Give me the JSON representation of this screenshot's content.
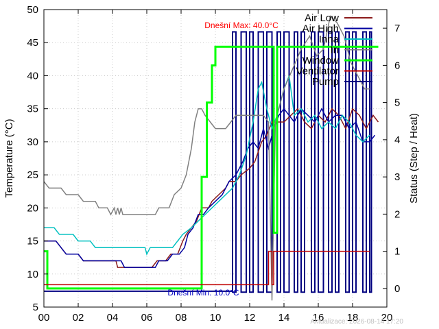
{
  "chart_data": {
    "type": "line",
    "title": "",
    "xlabel": "",
    "ylabel": "Temperature (°C)",
    "y2label": "Status (Step / Heat)",
    "xlim": [
      0,
      20
    ],
    "ylim": [
      5,
      50
    ],
    "y2lim": [
      -0.5,
      7.5
    ],
    "grid": true,
    "legend_position": "top-right",
    "x_ticks": [
      "00",
      "02",
      "04",
      "06",
      "08",
      "10",
      "12",
      "14",
      "16",
      "18",
      "20"
    ],
    "y_ticks": [
      "5",
      "10",
      "15",
      "20",
      "25",
      "30",
      "35",
      "40",
      "45",
      "50"
    ],
    "y2_ticks": [
      "0",
      "1",
      "2",
      "3",
      "4",
      "5",
      "6",
      "7"
    ],
    "annotations": {
      "max": "Dnešní Max: 40.0°C",
      "min": "Dnešní Min: 10.0°C",
      "footer": "Aktualizace: 2026-08-14 17:20"
    },
    "series": [
      {
        "name": "Air Low",
        "axis": "y",
        "color": "#8b1a1a",
        "points": [
          [
            0,
            15
          ],
          [
            0.7,
            15
          ],
          [
            1,
            14
          ],
          [
            1.3,
            13
          ],
          [
            2,
            13
          ],
          [
            2.3,
            12
          ],
          [
            4.2,
            12
          ],
          [
            4.3,
            11
          ],
          [
            5,
            11
          ],
          [
            6,
            11
          ],
          [
            6.3,
            11
          ],
          [
            6.6,
            12
          ],
          [
            7.1,
            12
          ],
          [
            7.4,
            13
          ],
          [
            7.8,
            13
          ],
          [
            8.1,
            15
          ],
          [
            8.3,
            16
          ],
          [
            8.6,
            17
          ],
          [
            8.9,
            18
          ],
          [
            9.2,
            20
          ],
          [
            9.6,
            20
          ],
          [
            9.8,
            21
          ],
          [
            10.2,
            22
          ],
          [
            10.6,
            23
          ],
          [
            10.8,
            24
          ],
          [
            11.2,
            24
          ],
          [
            11.5,
            25
          ],
          [
            12,
            26
          ],
          [
            12.3,
            27
          ],
          [
            12.7,
            30
          ],
          [
            13,
            31
          ],
          [
            13.3,
            33
          ],
          [
            13.6,
            33
          ],
          [
            14,
            33
          ],
          [
            14.4,
            34
          ],
          [
            14.8,
            35
          ],
          [
            15.2,
            33
          ],
          [
            15.6,
            32
          ],
          [
            16,
            34
          ],
          [
            16.4,
            33
          ],
          [
            16.8,
            35
          ],
          [
            17.2,
            34
          ],
          [
            17.6,
            32
          ],
          [
            18,
            35
          ],
          [
            18.4,
            34
          ],
          [
            18.8,
            32
          ],
          [
            19.2,
            34
          ],
          [
            19.5,
            33
          ]
        ]
      },
      {
        "name": "Air High",
        "axis": "y",
        "color": "#0000a0",
        "points": [
          [
            0,
            15
          ],
          [
            0.7,
            15
          ],
          [
            1,
            14
          ],
          [
            1.3,
            13
          ],
          [
            2,
            13
          ],
          [
            2.3,
            12
          ],
          [
            4.5,
            12
          ],
          [
            4.7,
            11
          ],
          [
            6,
            11
          ],
          [
            6.5,
            11
          ],
          [
            6.7,
            12
          ],
          [
            7.2,
            12
          ],
          [
            7.5,
            13
          ],
          [
            7.9,
            13
          ],
          [
            8.2,
            14
          ],
          [
            8.4,
            16
          ],
          [
            8.7,
            17
          ],
          [
            9,
            19
          ],
          [
            9.3,
            19
          ],
          [
            9.6,
            20
          ],
          [
            10,
            21
          ],
          [
            10.4,
            22
          ],
          [
            10.8,
            24
          ],
          [
            11.2,
            25
          ],
          [
            11.6,
            27
          ],
          [
            11.9,
            29
          ],
          [
            12.2,
            30
          ],
          [
            12.5,
            29
          ],
          [
            12.8,
            32
          ],
          [
            13.1,
            29
          ],
          [
            13.4,
            32
          ],
          [
            13.7,
            34
          ],
          [
            14,
            35
          ],
          [
            14.3,
            34
          ],
          [
            14.6,
            33
          ],
          [
            15,
            35
          ],
          [
            15.4,
            34
          ],
          [
            15.8,
            33
          ],
          [
            16.2,
            35
          ],
          [
            16.6,
            33
          ],
          [
            17,
            34
          ],
          [
            17.4,
            34
          ],
          [
            17.8,
            32
          ],
          [
            18.2,
            33
          ],
          [
            18.6,
            30
          ],
          [
            19,
            30
          ],
          [
            19.3,
            31
          ]
        ]
      },
      {
        "name": "Inna",
        "axis": "y",
        "color": "#00c0c0",
        "points": [
          [
            0,
            17
          ],
          [
            0.6,
            17
          ],
          [
            0.9,
            16
          ],
          [
            1.7,
            16
          ],
          [
            2,
            15
          ],
          [
            2.7,
            15
          ],
          [
            3,
            14
          ],
          [
            5.5,
            14
          ],
          [
            5.9,
            14
          ],
          [
            6,
            13
          ],
          [
            6.2,
            14
          ],
          [
            7.5,
            14
          ],
          [
            7.8,
            15
          ],
          [
            8.1,
            16
          ],
          [
            8.6,
            17
          ],
          [
            9,
            18
          ],
          [
            9.4,
            19
          ],
          [
            9.8,
            20
          ],
          [
            10.2,
            21
          ],
          [
            10.6,
            22
          ],
          [
            11,
            23
          ],
          [
            11.4,
            25
          ],
          [
            11.8,
            28
          ],
          [
            12.2,
            33
          ],
          [
            12.5,
            38
          ],
          [
            12.7,
            39
          ],
          [
            13,
            35
          ],
          [
            13.3,
            32
          ],
          [
            13.6,
            34
          ],
          [
            14,
            38
          ],
          [
            14.3,
            40
          ],
          [
            14.6,
            34
          ],
          [
            15,
            35
          ],
          [
            15.4,
            33
          ],
          [
            15.8,
            34
          ],
          [
            16.2,
            32
          ],
          [
            16.6,
            33
          ],
          [
            17,
            32
          ],
          [
            17.4,
            34
          ],
          [
            17.8,
            33
          ],
          [
            18.2,
            31
          ],
          [
            18.6,
            30
          ],
          [
            19,
            31
          ]
        ]
      },
      {
        "name": "In",
        "axis": "y",
        "color": "#808080",
        "points": [
          [
            0,
            24
          ],
          [
            0.3,
            23
          ],
          [
            1,
            23
          ],
          [
            1.3,
            22
          ],
          [
            2,
            22
          ],
          [
            2.3,
            21
          ],
          [
            3,
            21
          ],
          [
            3.2,
            20
          ],
          [
            3.7,
            20
          ],
          [
            3.9,
            19
          ],
          [
            4.1,
            20
          ],
          [
            4.2,
            19
          ],
          [
            4.3,
            20
          ],
          [
            4.4,
            19
          ],
          [
            4.5,
            20
          ],
          [
            4.6,
            19
          ],
          [
            6.5,
            19
          ],
          [
            6.7,
            20
          ],
          [
            7.3,
            20
          ],
          [
            7.6,
            22
          ],
          [
            8,
            23
          ],
          [
            8.3,
            25
          ],
          [
            8.6,
            29
          ],
          [
            8.8,
            33
          ],
          [
            9,
            35
          ],
          [
            9.2,
            35
          ],
          [
            9.4,
            34
          ],
          [
            9.7,
            33
          ],
          [
            10,
            32
          ],
          [
            10.6,
            32
          ],
          [
            10.9,
            33
          ],
          [
            11.2,
            34
          ],
          [
            12,
            34
          ],
          [
            12.4,
            34
          ],
          [
            12.8,
            34
          ],
          [
            13.1,
            33
          ],
          [
            13.3,
            6
          ],
          [
            13.5,
            33
          ],
          [
            14,
            38
          ],
          [
            14.5,
            41
          ],
          [
            15,
            44
          ],
          [
            15.5,
            46
          ],
          [
            15.9,
            43
          ],
          [
            16.3,
            44
          ],
          [
            16.7,
            49
          ],
          [
            17.1,
            48
          ],
          [
            17.5,
            46
          ],
          [
            17.9,
            42
          ],
          [
            18.3,
            40
          ],
          [
            18.7,
            38
          ],
          [
            19,
            38
          ]
        ]
      },
      {
        "name": "Window",
        "axis": "y2",
        "color": "#00ff00",
        "points": [
          [
            0,
            1
          ],
          [
            0.2,
            1
          ],
          [
            0.2,
            0
          ],
          [
            9.2,
            0
          ],
          [
            9.2,
            3
          ],
          [
            9.5,
            3
          ],
          [
            9.5,
            5
          ],
          [
            9.8,
            5
          ],
          [
            9.8,
            6
          ],
          [
            10,
            6
          ],
          [
            10,
            6.5
          ],
          [
            13.4,
            6.5
          ],
          [
            13.4,
            1.5
          ],
          [
            13.6,
            1.5
          ],
          [
            13.6,
            6.5
          ],
          [
            19.5,
            6.5
          ]
        ]
      },
      {
        "name": "Ventilator",
        "axis": "y2",
        "color": "#c00000",
        "points": [
          [
            0,
            0.1
          ],
          [
            13.1,
            0.1
          ],
          [
            13.1,
            1
          ],
          [
            13.3,
            1
          ],
          [
            13.3,
            0.1
          ],
          [
            13.4,
            0.1
          ],
          [
            13.4,
            1
          ],
          [
            19,
            1
          ]
        ]
      }
    ],
    "pump": {
      "name": "Pump",
      "color": "#000080",
      "axis": "y2",
      "low": -0.1,
      "high": 6.9,
      "bursts": [
        [
          11,
          11.2
        ],
        [
          11.5,
          11.8
        ],
        [
          12,
          12.2
        ],
        [
          12.5,
          12.8
        ],
        [
          13,
          13.3
        ],
        [
          13.6,
          13.8
        ],
        [
          14,
          14.3
        ],
        [
          14.6,
          14.8
        ],
        [
          15,
          15.2
        ],
        [
          15.6,
          15.8
        ],
        [
          16,
          16.3
        ],
        [
          16.6,
          16.8
        ],
        [
          17,
          17.2
        ],
        [
          17.6,
          17.8
        ],
        [
          18,
          18.2
        ],
        [
          18.6,
          18.8
        ],
        [
          19,
          19.1
        ]
      ]
    },
    "baseline_y2": 0
  }
}
